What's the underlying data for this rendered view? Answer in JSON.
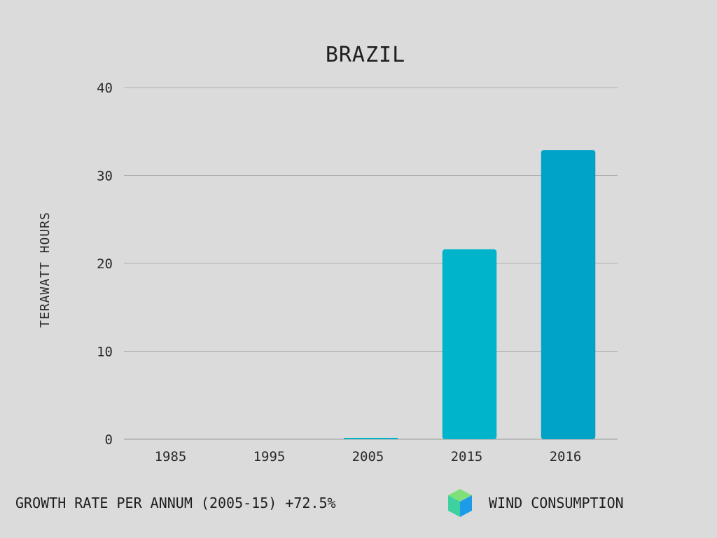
{
  "chart_data": {
    "type": "bar",
    "title": "BRAZIL",
    "ylabel": "TERAWATT HOURS",
    "xlabel": "",
    "categories": [
      "1985",
      "1995",
      "2005",
      "2015",
      "2016"
    ],
    "values": [
      0,
      0,
      0.1,
      21.6,
      32.9
    ],
    "ylim": [
      0,
      40
    ],
    "yticks": [
      0,
      10,
      20,
      30,
      40
    ],
    "grid": true,
    "bar_colors": [
      "#00b5cb",
      "#00b5cb",
      "#00b5cb",
      "#00b5cb",
      "#00a3c8"
    ]
  },
  "footer": {
    "growth_text": "GROWTH RATE PER ANNUM (2005-15) +72.5%"
  },
  "legend": {
    "label": "WIND CONSUMPTION",
    "icon": "cube-icon"
  }
}
